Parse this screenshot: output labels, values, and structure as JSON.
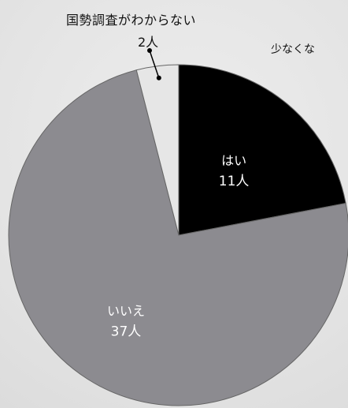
{
  "chart_data": {
    "type": "pie",
    "slices": [
      {
        "label": "はい",
        "count_label": "11人",
        "value": 11,
        "color": "#000000",
        "text_color": "#ffffff"
      },
      {
        "label": "いいえ",
        "count_label": "37人",
        "value": 37,
        "color": "#8c8b90",
        "text_color": "#ffffff"
      },
      {
        "label": "国勢調査がわからない",
        "count_label": "2人",
        "value": 2,
        "color": "#e6e6e6",
        "text_color": "#111111"
      }
    ],
    "start_angle_deg": 0,
    "direction": "clockwise"
  },
  "annotation": {
    "note": "少なくな"
  }
}
